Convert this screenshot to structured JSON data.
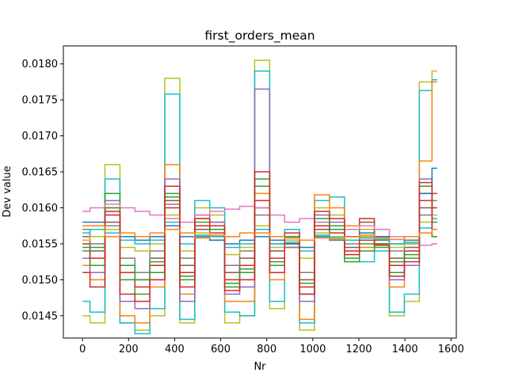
{
  "chart_data": {
    "type": "line",
    "title": "first_orders_mean",
    "xlabel": "Nr",
    "ylabel": "Dev value",
    "xlim": [
      -83,
      1623
    ],
    "ylim": [
      0.01419,
      0.01825
    ],
    "x_ticks": [
      0,
      200,
      400,
      600,
      800,
      1000,
      1200,
      1400,
      1600
    ],
    "y_ticks": [
      0.0145,
      0.015,
      0.0155,
      0.016,
      0.0165,
      0.017,
      0.0175,
      0.018
    ],
    "x_tick_labels": [
      "0",
      "200",
      "400",
      "600",
      "800",
      "1000",
      "1200",
      "1400",
      "1600"
    ],
    "y_tick_labels": [
      "0.0145",
      "0.0150",
      "0.0155",
      "0.0160",
      "0.0165",
      "0.0170",
      "0.0175",
      "0.0180"
    ],
    "drawstyle": "steps-mid",
    "grid": false,
    "legend": "none",
    "x": [
      0,
      65,
      130,
      195,
      260,
      325,
      390,
      455,
      520,
      585,
      650,
      715,
      780,
      845,
      910,
      975,
      1040,
      1105,
      1170,
      1235,
      1300,
      1365,
      1430,
      1495,
      1540
    ],
    "series": [
      {
        "color": "#bcbd22",
        "values": [
          0.0145,
          0.0144,
          0.0166,
          0.0144,
          0.0143,
          0.0145,
          0.0178,
          0.0144,
          0.016,
          0.0159,
          0.0144,
          0.0145,
          0.01805,
          0.0146,
          0.0156,
          0.0143,
          0.016,
          0.0159,
          0.0156,
          0.0157,
          0.0155,
          0.0145,
          0.0147,
          0.01775,
          0.0179
        ]
      },
      {
        "color": "#17becf",
        "values": [
          0.0147,
          0.01455,
          0.0164,
          0.0144,
          0.01425,
          0.0146,
          0.01758,
          0.01445,
          0.0161,
          0.016,
          0.01455,
          0.0145,
          0.0179,
          0.0147,
          0.0157,
          0.0144,
          0.0161,
          0.01615,
          0.0157,
          0.01525,
          0.0154,
          0.01455,
          0.0148,
          0.01763,
          0.01778
        ]
      },
      {
        "color": "#ff7f0e",
        "values": [
          0.0152,
          0.015,
          0.016,
          0.0145,
          0.0144,
          0.0149,
          0.0166,
          0.0148,
          0.0159,
          0.0158,
          0.0147,
          0.0147,
          0.0162,
          0.015,
          0.0155,
          0.01445,
          0.01618,
          0.016,
          0.01575,
          0.01545,
          0.0156,
          0.0149,
          0.0152,
          0.01665,
          0.01775
        ]
      },
      {
        "color": "#9467bd",
        "values": [
          0.0153,
          0.0151,
          0.0161,
          0.0147,
          0.0146,
          0.015,
          0.0164,
          0.0147,
          0.0159,
          0.0158,
          0.0148,
          0.0149,
          0.01765,
          0.0151,
          0.0156,
          0.0147,
          0.0159,
          0.0158,
          0.0156,
          0.0156,
          0.01555,
          0.015,
          0.0152,
          0.0164,
          0.0156
        ]
      },
      {
        "color": "#2ca02c",
        "values": [
          0.0154,
          0.0152,
          0.0162,
          0.015,
          0.0148,
          0.0151,
          0.0162,
          0.015,
          0.0158,
          0.0157,
          0.0149,
          0.0151,
          0.0163,
          0.0152,
          0.01555,
          0.0148,
          0.0158,
          0.0157,
          0.0153,
          0.0155,
          0.01545,
          0.0151,
          0.0153,
          0.0162,
          0.0158
        ]
      },
      {
        "color": "#d62728",
        "values": [
          0.0155,
          0.0153,
          0.0159,
          0.0151,
          0.0149,
          0.0152,
          0.016,
          0.0151,
          0.01575,
          0.01565,
          0.015,
          0.0152,
          0.0161,
          0.0153,
          0.0155,
          0.0149,
          0.01575,
          0.01565,
          0.0154,
          0.01585,
          0.0155,
          0.0152,
          0.0154,
          0.0161,
          0.016
        ]
      },
      {
        "color": "#8c564b",
        "values": [
          0.0156,
          0.0154,
          0.0158,
          0.0152,
          0.015,
          0.0153,
          0.0161,
          0.0152,
          0.0157,
          0.0156,
          0.0151,
          0.0153,
          0.016,
          0.0154,
          0.01545,
          0.015,
          0.0157,
          0.0156,
          0.01545,
          0.0158,
          0.01555,
          0.0153,
          0.01545,
          0.016,
          0.0162
        ]
      },
      {
        "color": "#e377c2",
        "values": [
          0.01595,
          0.016,
          0.01605,
          0.016,
          0.01595,
          0.0159,
          0.01585,
          0.0158,
          0.0159,
          0.01595,
          0.01598,
          0.01602,
          0.016,
          0.0159,
          0.0158,
          0.01585,
          0.0158,
          0.01575,
          0.0157,
          0.01575,
          0.0157,
          0.0156,
          0.0155,
          0.01548,
          0.0155
        ]
      },
      {
        "color": "#7f7f7f",
        "values": [
          0.0157,
          0.0155,
          0.01575,
          0.0153,
          0.0151,
          0.0154,
          0.01605,
          0.0153,
          0.01565,
          0.01555,
          0.0152,
          0.0154,
          0.0159,
          0.0155,
          0.01545,
          0.0151,
          0.01565,
          0.01555,
          0.0155,
          0.01565,
          0.0156,
          0.0154,
          0.0155,
          0.0159,
          0.0161
        ]
      },
      {
        "color": "#1f77b4",
        "values": [
          0.0158,
          0.0158,
          0.0157,
          0.0156,
          0.01555,
          0.0156,
          0.01575,
          0.0156,
          0.0156,
          0.01555,
          0.0155,
          0.01555,
          0.0156,
          0.01555,
          0.0155,
          0.01545,
          0.0156,
          0.01555,
          0.0156,
          0.01565,
          0.0156,
          0.0155,
          0.01555,
          0.0162,
          0.01655
        ]
      },
      {
        "color": "#2ca02c",
        "values": [
          0.01545,
          0.01545,
          0.016,
          0.0152,
          0.015,
          0.01525,
          0.01615,
          0.01505,
          0.01585,
          0.01575,
          0.01495,
          0.01515,
          0.0164,
          0.01525,
          0.0156,
          0.01495,
          0.01585,
          0.01575,
          0.01525,
          0.0154,
          0.0155,
          0.01525,
          0.01535,
          0.0163,
          0.0156
        ]
      },
      {
        "color": "#bcbd22",
        "values": [
          0.01555,
          0.0156,
          0.0157,
          0.01545,
          0.0154,
          0.0155,
          0.0159,
          0.0154,
          0.01565,
          0.0156,
          0.01535,
          0.01545,
          0.01575,
          0.01545,
          0.01555,
          0.0153,
          0.01565,
          0.0156,
          0.01555,
          0.0156,
          0.01558,
          0.01545,
          0.0155,
          0.0158,
          0.0159
        ]
      },
      {
        "color": "#17becf",
        "values": [
          0.01565,
          0.0157,
          0.01565,
          0.01555,
          0.0155,
          0.01555,
          0.0158,
          0.0155,
          0.01562,
          0.0156,
          0.01545,
          0.0155,
          0.0157,
          0.0155,
          0.01552,
          0.0154,
          0.01562,
          0.01558,
          0.01555,
          0.01558,
          0.01556,
          0.0155,
          0.01552,
          0.01572,
          0.01585
        ]
      },
      {
        "color": "#d62728",
        "values": [
          0.0151,
          0.0149,
          0.01595,
          0.0148,
          0.0147,
          0.015,
          0.0163,
          0.0149,
          0.01585,
          0.01575,
          0.01485,
          0.015,
          0.0165,
          0.0151,
          0.01565,
          0.0148,
          0.01595,
          0.01585,
          0.01535,
          0.01555,
          0.01548,
          0.01505,
          0.01525,
          0.01635,
          0.0157
        ]
      },
      {
        "color": "#ff7f0e",
        "values": [
          0.01575,
          0.01575,
          0.0156,
          0.01565,
          0.0156,
          0.01565,
          0.0157,
          0.01565,
          0.01558,
          0.01562,
          0.0156,
          0.01565,
          0.01565,
          0.0156,
          0.01558,
          0.01555,
          0.01558,
          0.01556,
          0.0156,
          0.01562,
          0.01558,
          0.01556,
          0.0156,
          0.01565,
          0.0157
        ]
      }
    ]
  }
}
